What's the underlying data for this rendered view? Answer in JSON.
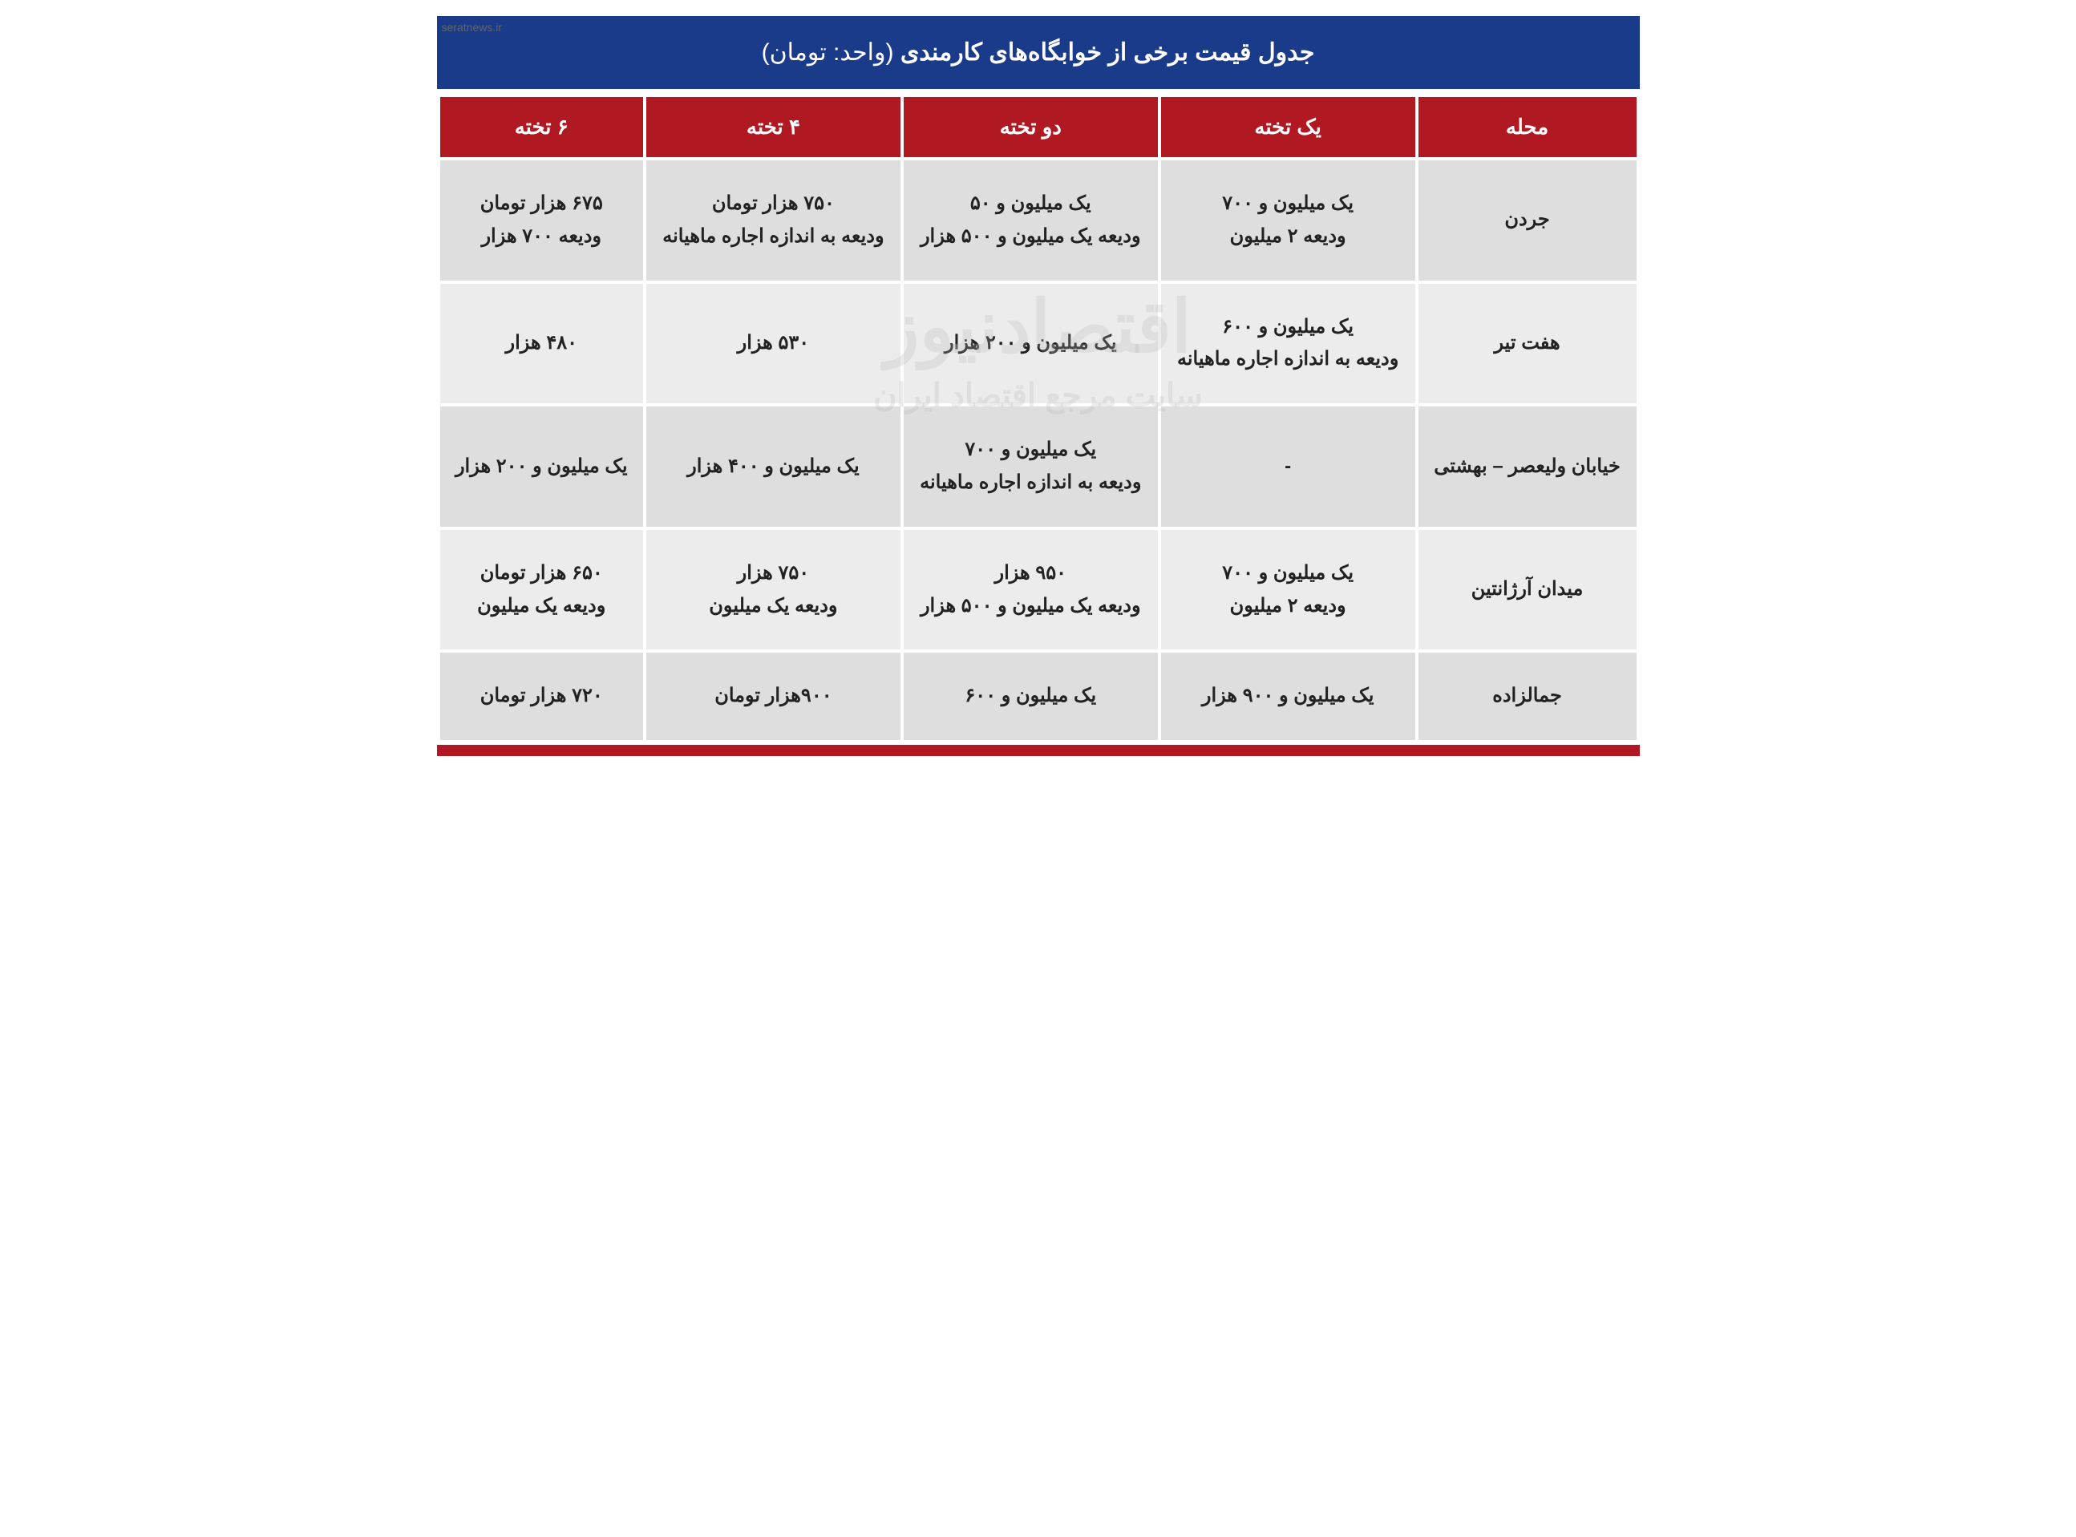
{
  "corner_text": "seratnews.ir",
  "title_bold": "جدول قیمت برخی از خوابگاه‌های کارمندی",
  "title_unit": "(واحد: تومان)",
  "watermark_main": "اقتصادنیوز",
  "watermark_sub": "سایت مرجع اقتصاد ایران",
  "colors": {
    "title_bg": "#1a3a8a",
    "header_bg": "#b01822",
    "row_bg": "#dedede",
    "row_alt_bg": "#ececec",
    "text": "#222222",
    "header_text": "#ffffff"
  },
  "columns": [
    "محله",
    "یک تخته",
    "دو تخته",
    "۴ تخته",
    "۶ تخته"
  ],
  "rows": [
    {
      "c0": "جردن",
      "c1": "یک میلیون و ۷۰۰\nودیعه ۲ میلیون",
      "c2": "یک میلیون و ۵۰\nودیعه یک میلیون و ۵۰۰ هزار",
      "c3": "۷۵۰ هزار تومان\nودیعه به اندازه اجاره ماهیانه",
      "c4": "۶۷۵ هزار تومان\nودیعه ۷۰۰ هزار"
    },
    {
      "c0": "هفت تیر",
      "c1": "یک میلیون و ۶۰۰\nودیعه به اندازه اجاره ماهیانه",
      "c2": "یک میلیون و ۲۰۰ هزار",
      "c3": "۵۳۰ هزار",
      "c4": "۴۸۰ هزار"
    },
    {
      "c0": "خیابان ولیعصر – بهشتی",
      "c1": "-",
      "c2": "یک میلیون و ۷۰۰\nودیعه به اندازه اجاره ماهیانه",
      "c3": "یک میلیون و ۴۰۰ هزار",
      "c4": "یک میلیون و ۲۰۰ هزار"
    },
    {
      "c0": "میدان آرژانتین",
      "c1": "یک میلیون و ۷۰۰\nودیعه ۲ میلیون",
      "c2": "۹۵۰ هزار\nودیعه یک میلیون و ۵۰۰ هزار",
      "c3": "۷۵۰ هزار\nودیعه  یک میلیون",
      "c4": "۶۵۰ هزار تومان\nودیعه یک میلیون"
    },
    {
      "c0": "جمالزاده",
      "c1": "یک میلیون و ۹۰۰ هزار",
      "c2": "یک میلیون و ۶۰۰",
      "c3": "۹۰۰هزار تومان",
      "c4": "۷۲۰ هزار تومان"
    }
  ]
}
